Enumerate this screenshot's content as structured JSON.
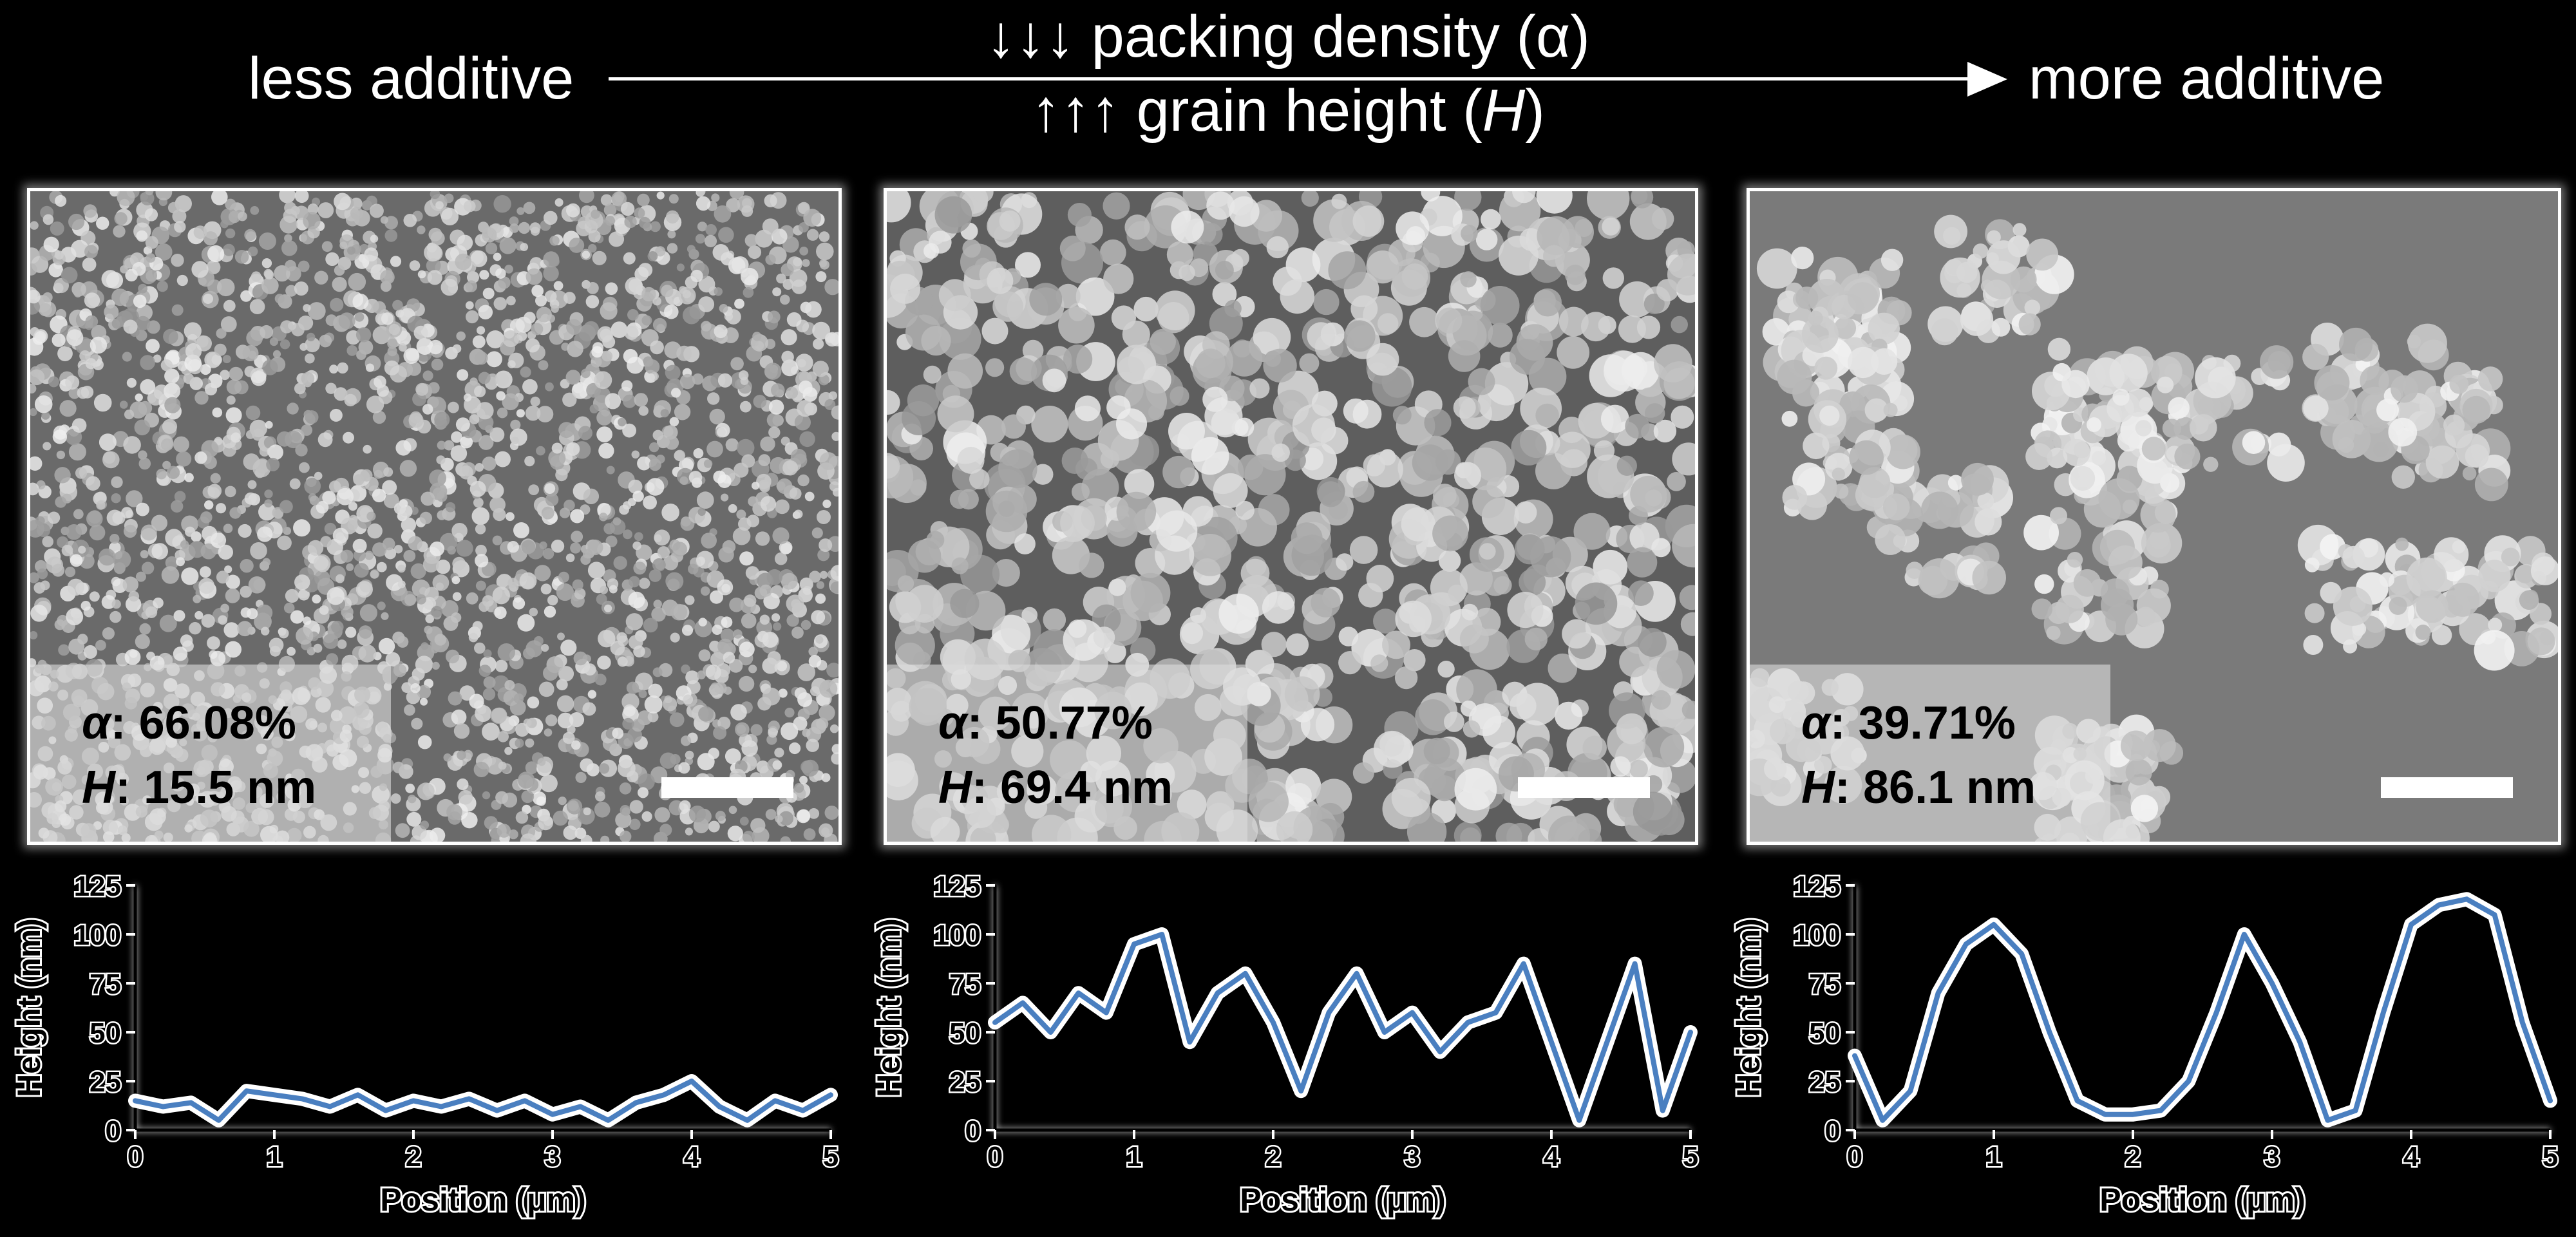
{
  "header": {
    "left_label": "less additive",
    "right_label": "more additive",
    "top_line": "↓↓↓ packing density (α)",
    "bottom_line_prefix": "↑↑↑ grain height (",
    "bottom_line_var": "H",
    "bottom_line_suffix": ")"
  },
  "panels": [
    {
      "alpha_sym": "α",
      "alpha_value": ": 66.08%",
      "h_sym": "H",
      "h_value": ": 15.5 nm"
    },
    {
      "alpha_sym": "α",
      "alpha_value": ": 50.77%",
      "h_sym": "H",
      "h_value": ": 69.4 nm"
    },
    {
      "alpha_sym": "α",
      "alpha_value": ": 39.71%",
      "h_sym": "H",
      "h_value": ": 86.1 nm"
    }
  ],
  "chart_data": [
    {
      "type": "line",
      "xlabel": "Position (μm)",
      "ylabel": "Height (nm)",
      "xlim": [
        0,
        5
      ],
      "ylim": [
        0,
        125
      ],
      "xticks": [
        0,
        1,
        2,
        3,
        4,
        5
      ],
      "yticks": [
        0,
        25,
        50,
        75,
        100,
        125
      ],
      "line_color": "#4a7fc0",
      "x": [
        0,
        0.2,
        0.4,
        0.6,
        0.8,
        1.0,
        1.2,
        1.4,
        1.6,
        1.8,
        2.0,
        2.2,
        2.4,
        2.6,
        2.8,
        3.0,
        3.2,
        3.4,
        3.6,
        3.8,
        4.0,
        4.2,
        4.4,
        4.6,
        4.8,
        5.0
      ],
      "y": [
        15,
        12,
        14,
        5,
        20,
        18,
        16,
        12,
        18,
        10,
        15,
        12,
        16,
        10,
        15,
        8,
        12,
        5,
        14,
        18,
        25,
        12,
        5,
        15,
        10,
        18
      ]
    },
    {
      "type": "line",
      "xlabel": "Position (μm)",
      "ylabel": "Height (nm)",
      "xlim": [
        0,
        5
      ],
      "ylim": [
        0,
        125
      ],
      "xticks": [
        0,
        1,
        2,
        3,
        4,
        5
      ],
      "yticks": [
        0,
        25,
        50,
        75,
        100,
        125
      ],
      "line_color": "#4a7fc0",
      "x": [
        0,
        0.2,
        0.4,
        0.6,
        0.8,
        1.0,
        1.2,
        1.4,
        1.6,
        1.8,
        2.0,
        2.2,
        2.4,
        2.6,
        2.8,
        3.0,
        3.2,
        3.4,
        3.6,
        3.8,
        4.0,
        4.2,
        4.4,
        4.6,
        4.8,
        5.0
      ],
      "y": [
        55,
        65,
        50,
        70,
        60,
        95,
        100,
        45,
        70,
        80,
        55,
        20,
        60,
        80,
        50,
        60,
        40,
        55,
        60,
        85,
        45,
        5,
        45,
        85,
        10,
        50
      ]
    },
    {
      "type": "line",
      "xlabel": "Position (μm)",
      "ylabel": "Height (nm)",
      "xlim": [
        0,
        5
      ],
      "ylim": [
        0,
        125
      ],
      "xticks": [
        0,
        1,
        2,
        3,
        4,
        5
      ],
      "yticks": [
        0,
        25,
        50,
        75,
        100,
        125
      ],
      "line_color": "#4a7fc0",
      "x": [
        0,
        0.2,
        0.4,
        0.6,
        0.8,
        1.0,
        1.2,
        1.4,
        1.6,
        1.8,
        2.0,
        2.2,
        2.4,
        2.6,
        2.8,
        3.0,
        3.2,
        3.4,
        3.6,
        3.8,
        4.0,
        4.2,
        4.4,
        4.6,
        4.8,
        5.0
      ],
      "y": [
        38,
        5,
        20,
        70,
        95,
        105,
        90,
        50,
        15,
        8,
        8,
        10,
        25,
        60,
        100,
        75,
        45,
        5,
        10,
        60,
        105,
        115,
        118,
        110,
        55,
        15
      ]
    }
  ]
}
